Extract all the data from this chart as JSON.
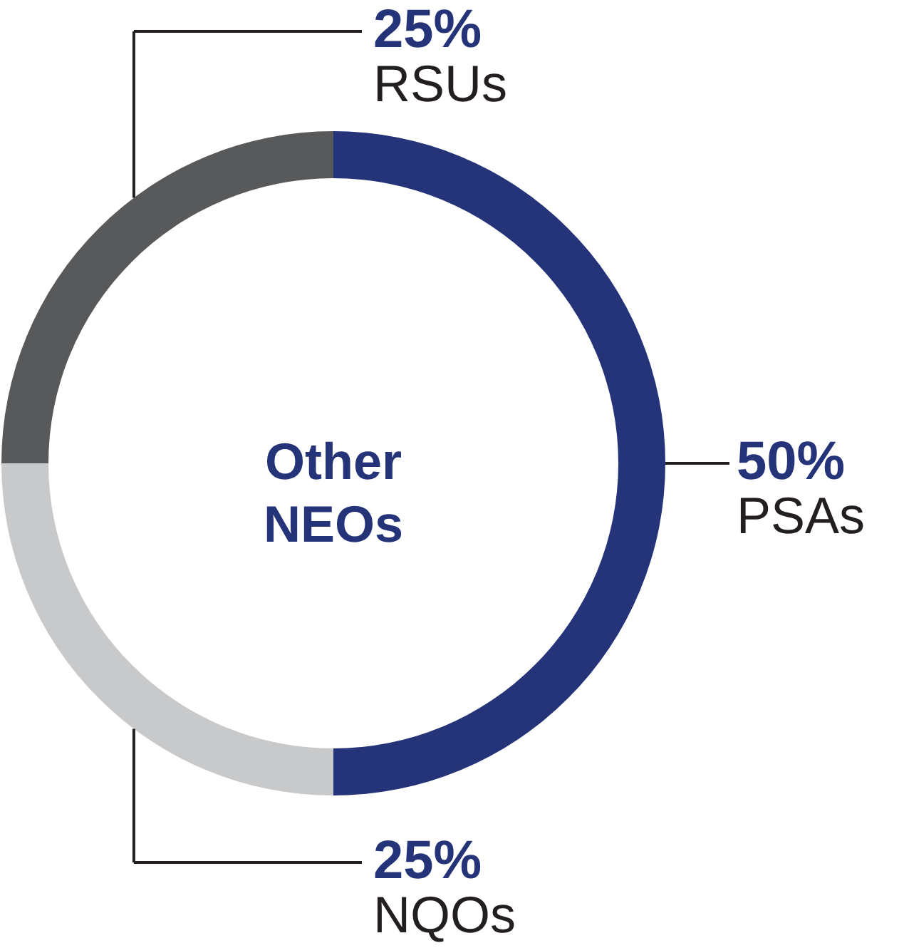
{
  "chart_data": {
    "type": "donut",
    "title": "Other NEOs",
    "categories": [
      "PSAs",
      "NQOs",
      "RSUs"
    ],
    "values": [
      50,
      25,
      25
    ],
    "colors": [
      "#253479",
      "#c8c9cb",
      "#58595b"
    ],
    "value_labels": [
      "50%",
      "25%",
      "25%"
    ]
  }
}
